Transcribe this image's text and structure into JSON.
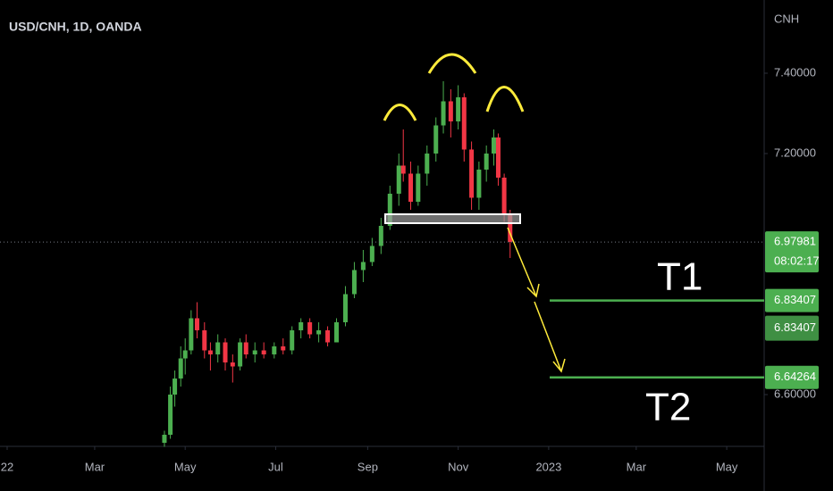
{
  "chart_data": {
    "type": "candlestick",
    "title": "USD/CNH, 1D, OANDA",
    "y_axis_label": "CNH",
    "x": [
      106,
      110,
      113,
      117,
      120,
      124,
      128,
      133,
      137,
      142,
      147,
      152,
      157,
      161,
      167,
      173,
      180,
      186,
      192,
      198,
      204,
      210,
      216,
      222,
      228,
      234,
      240,
      246,
      252,
      258,
      264,
      267,
      272,
      277,
      283,
      289,
      294,
      299,
      304,
      308,
      313,
      318,
      323,
      328,
      331,
      335,
      339
    ],
    "open": [
      6.48,
      6.5,
      6.6,
      6.64,
      6.69,
      6.71,
      6.79,
      6.76,
      6.71,
      6.7,
      6.73,
      6.68,
      6.67,
      6.73,
      6.7,
      6.71,
      6.7,
      6.72,
      6.71,
      6.76,
      6.78,
      6.75,
      6.76,
      6.73,
      6.78,
      6.85,
      6.91,
      6.93,
      6.97,
      7.02,
      7.1,
      7.17,
      7.15,
      7.08,
      7.15,
      7.2,
      7.27,
      7.33,
      7.28,
      7.34,
      7.21,
      7.09,
      7.16,
      7.2,
      7.24,
      7.14,
      7.05
    ],
    "high": [
      6.51,
      6.62,
      6.66,
      6.72,
      6.74,
      6.81,
      6.83,
      6.78,
      6.73,
      6.75,
      6.74,
      6.7,
      6.74,
      6.75,
      6.73,
      6.73,
      6.73,
      6.74,
      6.77,
      6.79,
      6.79,
      6.78,
      6.77,
      6.79,
      6.87,
      6.93,
      6.96,
      6.99,
      7.04,
      7.12,
      7.2,
      7.26,
      7.18,
      7.17,
      7.22,
      7.29,
      7.38,
      7.36,
      7.37,
      7.35,
      7.23,
      7.18,
      7.22,
      7.26,
      7.25,
      7.15,
      7.06
    ],
    "low": [
      6.47,
      6.49,
      6.57,
      6.62,
      6.65,
      6.7,
      6.74,
      6.69,
      6.66,
      6.68,
      6.66,
      6.63,
      6.66,
      6.69,
      6.68,
      6.69,
      6.69,
      6.7,
      6.7,
      6.74,
      6.74,
      6.73,
      6.72,
      6.73,
      6.77,
      6.84,
      6.88,
      6.92,
      6.95,
      7.01,
      7.07,
      7.13,
      7.06,
      7.07,
      7.12,
      7.18,
      7.25,
      7.24,
      7.26,
      7.18,
      7.06,
      7.06,
      7.13,
      7.17,
      7.12,
      7.03,
      6.94
    ],
    "close": [
      6.5,
      6.6,
      6.64,
      6.69,
      6.71,
      6.79,
      6.76,
      6.71,
      6.7,
      6.73,
      6.68,
      6.67,
      6.73,
      6.7,
      6.71,
      6.7,
      6.72,
      6.71,
      6.76,
      6.78,
      6.75,
      6.76,
      6.73,
      6.78,
      6.85,
      6.91,
      6.93,
      6.97,
      7.02,
      7.1,
      7.17,
      7.15,
      7.08,
      7.15,
      7.2,
      7.27,
      7.33,
      7.28,
      7.34,
      7.21,
      7.09,
      7.16,
      7.2,
      7.24,
      7.14,
      7.05,
      6.98
    ],
    "up_color": "#4caf50",
    "down_color": "#f23645",
    "xlim": [
      -4.82,
      510.24
    ],
    "xticks": [
      {
        "value": 0,
        "label": "22"
      },
      {
        "value": 59,
        "label": "Mar"
      },
      {
        "value": 120,
        "label": "May"
      },
      {
        "value": 181,
        "label": "Jul"
      },
      {
        "value": 243,
        "label": "Sep"
      },
      {
        "value": 304,
        "label": "Nov"
      },
      {
        "value": 365,
        "label": "2023"
      },
      {
        "value": 424,
        "label": "Mar"
      },
      {
        "value": 485,
        "label": "May"
      }
    ],
    "ylim": [
      6.4711,
      7.5822
    ],
    "yticks": [
      {
        "value": 7.4,
        "label": "7.40000"
      },
      {
        "value": 7.2,
        "label": "7.20000"
      },
      {
        "value": 6.6,
        "label": "6.60000"
      }
    ],
    "last_price": {
      "value": 6.97981,
      "countdown": "08:02:17"
    },
    "levels": [
      {
        "label": "T1",
        "value": 6.83407
      },
      {
        "label": "T2",
        "value": 6.64264
      }
    ]
  }
}
